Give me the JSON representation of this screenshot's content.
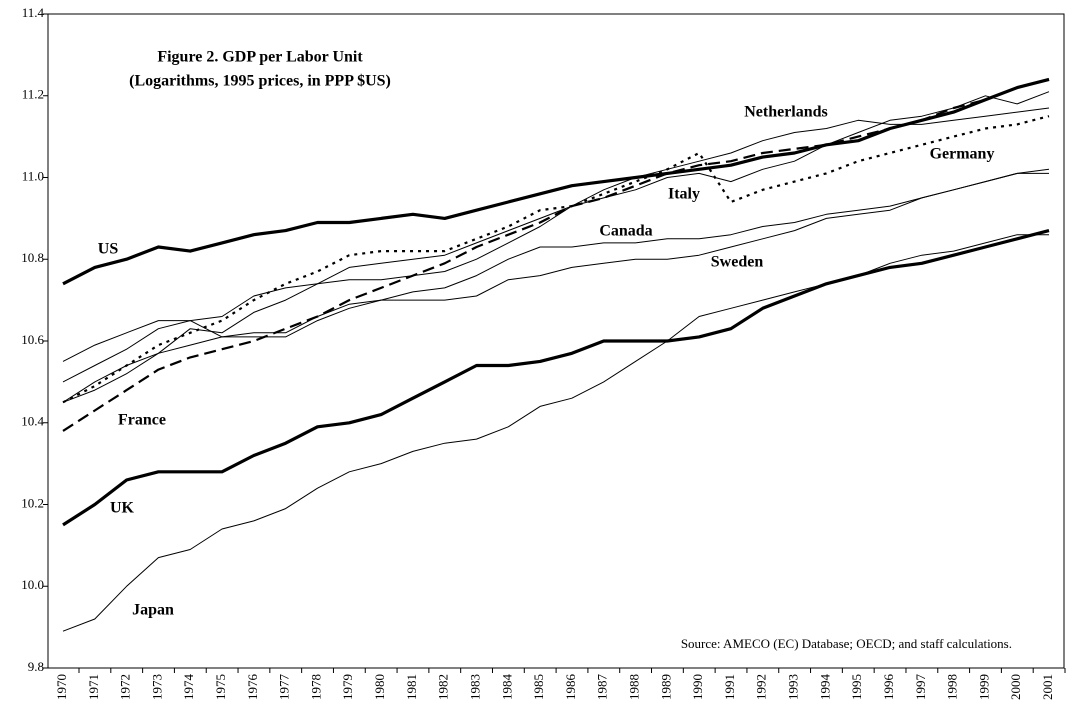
{
  "chart_data": {
    "type": "line",
    "title": "Figure 2.  GDP per Labor Unit",
    "subtitle": "(Logarithms, 1995 prices, in PPP $US)",
    "source": "Source: AMECO (EC) Database; OECD; and staff calculations.",
    "categories": [
      "1970",
      "1971",
      "1972",
      "1973",
      "1974",
      "1975",
      "1976",
      "1977",
      "1978",
      "1979",
      "1980",
      "1981",
      "1982",
      "1983",
      "1984",
      "1985",
      "1986",
      "1987",
      "1988",
      "1989",
      "1990",
      "1991",
      "1992",
      "1993",
      "1994",
      "1995",
      "1996",
      "1997",
      "1998",
      "1999",
      "2000",
      "2001"
    ],
    "ylim": [
      9.8,
      11.4
    ],
    "yticks": [
      9.8,
      {
        "value": 10,
        "label": "10.0"
      },
      10.2,
      10.4,
      10.6,
      10.8,
      {
        "value": 11,
        "label": "11.0"
      },
      11.2,
      11.4
    ],
    "series": [
      {
        "name": "US",
        "color": "#000000",
        "dash": "solid",
        "width": "thick",
        "values": [
          10.74,
          10.78,
          10.8,
          10.83,
          10.82,
          10.84,
          10.86,
          10.87,
          10.89,
          10.89,
          10.9,
          10.91,
          10.9,
          10.92,
          10.94,
          10.96,
          10.98,
          10.99,
          11.0,
          11.01,
          11.02,
          11.03,
          11.05,
          11.06,
          11.08,
          11.09,
          11.12,
          11.14,
          11.16,
          11.19,
          11.22,
          11.24
        ]
      },
      {
        "name": "Netherlands",
        "color": "#000000",
        "dash": "solid",
        "width": "thin",
        "values": [
          10.5,
          10.54,
          10.58,
          10.63,
          10.65,
          10.66,
          10.71,
          10.73,
          10.74,
          10.75,
          10.75,
          10.76,
          10.77,
          10.8,
          10.84,
          10.88,
          10.93,
          10.97,
          11.0,
          11.02,
          11.04,
          11.06,
          11.09,
          11.11,
          11.12,
          11.14,
          11.13,
          11.13,
          11.14,
          11.15,
          11.16,
          11.17
        ]
      },
      {
        "name": "Germany",
        "color": "#000000",
        "dash": "dotted",
        "width": "medium",
        "values": [
          10.45,
          10.49,
          10.54,
          10.59,
          10.62,
          10.65,
          10.7,
          10.74,
          10.77,
          10.81,
          10.82,
          10.82,
          10.82,
          10.85,
          10.88,
          10.92,
          10.93,
          10.96,
          10.99,
          11.02,
          11.06,
          10.94,
          10.97,
          10.99,
          11.01,
          11.04,
          11.06,
          11.08,
          11.1,
          11.12,
          11.13,
          11.15
        ]
      },
      {
        "name": "Italy",
        "color": "#000000",
        "dash": "solid",
        "width": "thin",
        "values": [
          10.45,
          10.48,
          10.52,
          10.57,
          10.63,
          10.62,
          10.67,
          10.7,
          10.74,
          10.78,
          10.79,
          10.8,
          10.81,
          10.84,
          10.87,
          10.9,
          10.93,
          10.95,
          10.97,
          11.0,
          11.01,
          10.99,
          11.02,
          11.04,
          11.08,
          11.11,
          11.14,
          11.15,
          11.17,
          11.2,
          11.18,
          11.21
        ]
      },
      {
        "name": "Canada",
        "color": "#000000",
        "dash": "solid",
        "width": "thin",
        "values": [
          10.55,
          10.59,
          10.62,
          10.65,
          10.65,
          10.61,
          10.61,
          10.61,
          10.65,
          10.68,
          10.7,
          10.72,
          10.73,
          10.76,
          10.8,
          10.83,
          10.83,
          10.84,
          10.84,
          10.85,
          10.85,
          10.86,
          10.88,
          10.89,
          10.91,
          10.92,
          10.93,
          10.95,
          10.97,
          10.99,
          11.01,
          11.02
        ]
      },
      {
        "name": "Sweden",
        "color": "#000000",
        "dash": "solid",
        "width": "thin",
        "values": [
          10.45,
          10.5,
          10.54,
          10.57,
          10.59,
          10.61,
          10.62,
          10.62,
          10.66,
          10.69,
          10.7,
          10.7,
          10.7,
          10.71,
          10.75,
          10.76,
          10.78,
          10.79,
          10.8,
          10.8,
          10.81,
          10.83,
          10.85,
          10.87,
          10.9,
          10.91,
          10.92,
          10.95,
          10.97,
          10.99,
          11.01,
          11.01
        ]
      },
      {
        "name": "France",
        "color": "#000000",
        "dash": "dashed",
        "width": "medium",
        "values": [
          10.38,
          10.43,
          10.48,
          10.53,
          10.56,
          10.58,
          10.6,
          10.63,
          10.66,
          10.7,
          10.73,
          10.76,
          10.79,
          10.83,
          10.86,
          10.89,
          10.93,
          10.95,
          10.98,
          11.01,
          11.03,
          11.04,
          11.06,
          11.07,
          11.08,
          11.1,
          11.12,
          11.14,
          11.17,
          11.19,
          11.22,
          11.24
        ]
      },
      {
        "name": "UK",
        "color": "#000000",
        "dash": "solid",
        "width": "thick",
        "values": [
          10.15,
          10.2,
          10.26,
          10.28,
          10.28,
          10.28,
          10.32,
          10.35,
          10.39,
          10.4,
          10.42,
          10.46,
          10.5,
          10.54,
          10.54,
          10.55,
          10.57,
          10.6,
          10.6,
          10.6,
          10.61,
          10.63,
          10.68,
          10.71,
          10.74,
          10.76,
          10.78,
          10.79,
          10.81,
          10.83,
          10.85,
          10.87
        ]
      },
      {
        "name": "Japan",
        "color": "#000000",
        "dash": "solid",
        "width": "thin",
        "values": [
          9.89,
          9.92,
          10.0,
          10.07,
          10.09,
          10.14,
          10.16,
          10.19,
          10.24,
          10.28,
          10.3,
          10.33,
          10.35,
          10.36,
          10.39,
          10.44,
          10.46,
          10.5,
          10.55,
          10.6,
          10.66,
          10.68,
          10.7,
          10.72,
          10.74,
          10.76,
          10.79,
          10.81,
          10.82,
          10.84,
          10.86,
          10.86
        ]
      }
    ]
  }
}
